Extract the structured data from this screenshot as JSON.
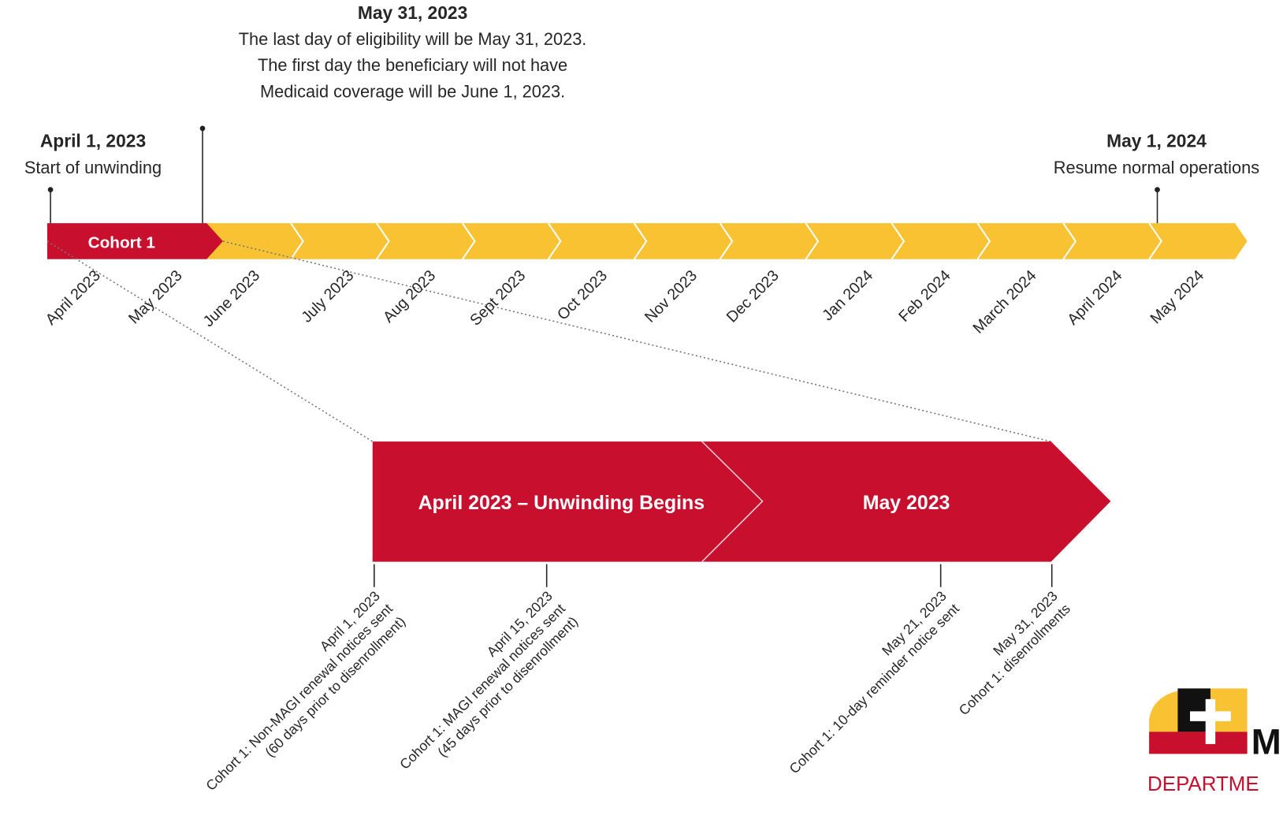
{
  "callouts": {
    "top": {
      "title": "May 31, 2023",
      "lines": [
        "The last day of eligibility will be May 31, 2023.",
        "The first day the beneficiary will not have",
        "Medicaid coverage will be June 1, 2023."
      ]
    },
    "left": {
      "title": "April 1, 2023",
      "lines": [
        "Start of unwinding"
      ]
    },
    "right": {
      "title": "May 1, 2024",
      "lines": [
        "Resume normal operations"
      ]
    }
  },
  "timeline": {
    "cohort": "Cohort 1",
    "months": [
      "April 2023",
      "May 2023",
      "June 2023",
      "July 2023",
      "Aug 2023",
      "Sept 2023",
      "Oct 2023",
      "Nov 2023",
      "Dec 2023",
      "Jan 2024",
      "Feb 2024",
      "March 2024",
      "April 2024",
      "May 2024"
    ]
  },
  "detail": {
    "segments": [
      "April 2023 – Unwinding Begins",
      "May 2023"
    ],
    "events": [
      {
        "lines": [
          "April 1, 2023",
          "Cohort 1: Non-MAGI renewal notices sent",
          "(60 days prior to disenrollment)"
        ]
      },
      {
        "lines": [
          "April 15, 2023",
          "Cohort 1: MAGI renewal notices sent",
          "(45 days prior to disenrollment)"
        ]
      },
      {
        "lines": [
          "May 21, 2023",
          "Cohort 1: 10-day reminder notice sent"
        ]
      },
      {
        "lines": [
          "May 31, 2023",
          "Cohort 1: disenrollments"
        ]
      }
    ]
  },
  "logo": {
    "letter": "M",
    "text": "DEPARTME"
  }
}
